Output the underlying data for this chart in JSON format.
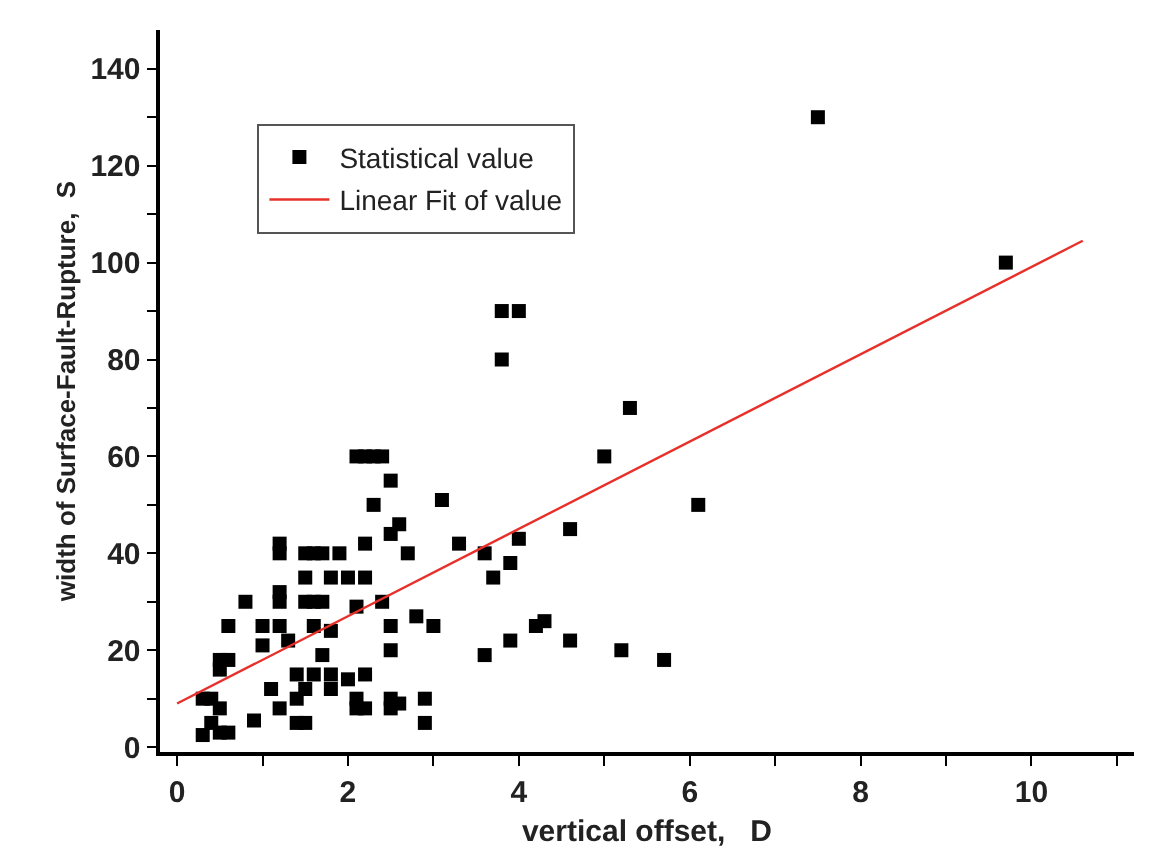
{
  "chart_data": {
    "type": "scatter",
    "xlabel": "vertical offset,   D",
    "ylabel": "width of Surface-Fault-Rupture,  S",
    "xlim": [
      -0.2,
      11.2
    ],
    "ylim": [
      -1,
      148
    ],
    "xticks": [
      0,
      {
        "value": 1,
        "label": null
      },
      2,
      {
        "value": 3,
        "label": null
      },
      4,
      {
        "value": 5,
        "label": null
      },
      6,
      {
        "value": 7,
        "label": null
      },
      8,
      {
        "value": 9,
        "label": null
      },
      10,
      {
        "value": 11,
        "label": null
      }
    ],
    "yticks": [
      0,
      {
        "value": 10,
        "label": null
      },
      20,
      {
        "value": 30,
        "label": null
      },
      40,
      {
        "value": 50,
        "label": null
      },
      60,
      {
        "value": 70,
        "label": null
      },
      80,
      {
        "value": 90,
        "label": null
      },
      100,
      {
        "value": 110,
        "label": null
      },
      120,
      {
        "value": 130,
        "label": null
      },
      140
    ],
    "legend": "top left",
    "series": [
      {
        "name": "Statistical value",
        "marker": "square",
        "color": "#000000",
        "x": [
          0.3,
          0.3,
          0.4,
          0.4,
          0.5,
          0.5,
          0.5,
          0.5,
          0.6,
          0.6,
          0.6,
          0.8,
          0.9,
          1.0,
          1.0,
          1.1,
          1.2,
          1.2,
          1.2,
          1.2,
          1.2,
          1.2,
          1.3,
          1.4,
          1.4,
          1.4,
          1.5,
          1.5,
          1.5,
          1.5,
          1.5,
          1.6,
          1.6,
          1.6,
          1.6,
          1.7,
          1.7,
          1.7,
          1.8,
          1.8,
          1.8,
          1.8,
          1.9,
          2.0,
          2.0,
          2.1,
          2.1,
          2.1,
          2.1,
          2.2,
          2.2,
          2.2,
          2.2,
          2.2,
          2.3,
          2.3,
          2.4,
          2.4,
          2.5,
          2.5,
          2.5,
          2.5,
          2.5,
          2.5,
          2.6,
          2.6,
          2.7,
          2.8,
          2.9,
          2.9,
          3.0,
          3.1,
          3.3,
          3.6,
          3.6,
          3.7,
          3.8,
          3.8,
          3.9,
          3.9,
          4.0,
          4.0,
          4.2,
          4.3,
          4.6,
          4.6,
          5.0,
          5.2,
          5.3,
          5.7,
          6.1,
          7.5,
          9.7
        ],
        "values": [
          10,
          2.5,
          10,
          5,
          18,
          16,
          8,
          3,
          25,
          18,
          3,
          30,
          5.5,
          25,
          21,
          12,
          42,
          40,
          32,
          30,
          25,
          8,
          22,
          15,
          10,
          5,
          40,
          35,
          30,
          12,
          5,
          40,
          30,
          25,
          15,
          40,
          30,
          19,
          24,
          35,
          15,
          12,
          40,
          35,
          14,
          60,
          29,
          10,
          8,
          60,
          42,
          35,
          15,
          8,
          60,
          50,
          60,
          30,
          55,
          44,
          25,
          20,
          10,
          8,
          46,
          9,
          40,
          27,
          10,
          5,
          25,
          51,
          42,
          40,
          19,
          35,
          90,
          80,
          38,
          22,
          90,
          43,
          25,
          26,
          45,
          22,
          60,
          20,
          70,
          18,
          50,
          130,
          100
        ]
      },
      {
        "name": "Linear Fit of value",
        "type": "line",
        "color": "#e8302a",
        "line_style": "solid",
        "marker": "none",
        "x": [
          0,
          10.6
        ],
        "values": [
          9,
          104.5
        ]
      }
    ]
  }
}
